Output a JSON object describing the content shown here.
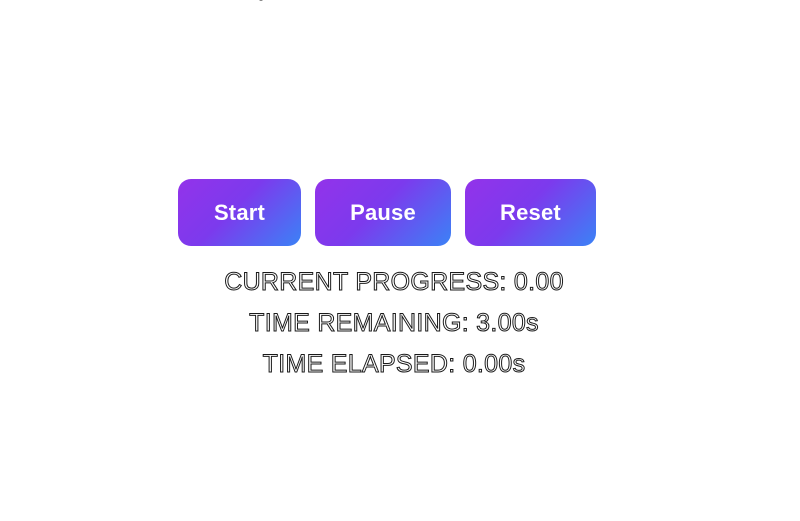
{
  "controls": {
    "start_label": "Start",
    "pause_label": "Pause",
    "reset_label": "Reset"
  },
  "stats": {
    "progress_text": "CURRENT PROGRESS: 0.00",
    "remaining_text": "TIME REMAINING: 3.00s",
    "elapsed_text": "TIME ELAPSED: 0.00s"
  },
  "theme": {
    "gradient_start": "#9333ea",
    "gradient_end": "#3b82f6",
    "text_outline": "#1a1a1a"
  }
}
